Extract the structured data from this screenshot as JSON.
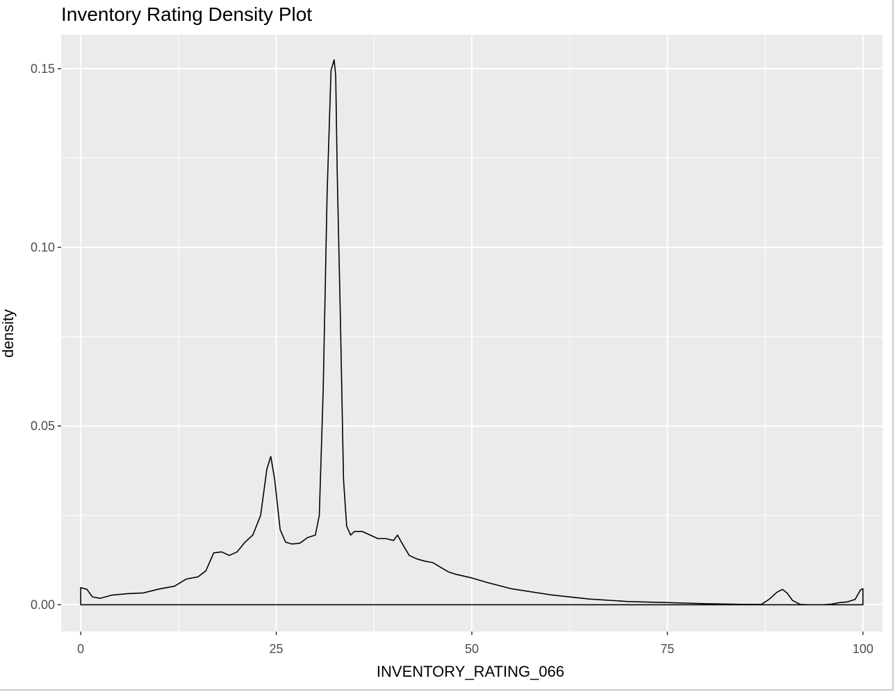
{
  "chart_data": {
    "type": "area",
    "title": "Inventory Rating Density Plot",
    "xlabel": "INVENTORY_RATING_066",
    "ylabel": "density",
    "xlim": [
      -2.5,
      102.5
    ],
    "ylim": [
      -0.0075,
      0.1595
    ],
    "x_ticks": [
      0,
      25,
      50,
      75,
      100
    ],
    "x_tick_labels": [
      "0",
      "25",
      "50",
      "75",
      "100"
    ],
    "y_ticks": [
      0.0,
      0.05,
      0.1,
      0.15
    ],
    "y_tick_labels": [
      "0.00",
      "0.05",
      "0.10",
      "0.15"
    ],
    "grid": true,
    "panel_color": "#ebebeb",
    "line_color": "#000000",
    "series": [
      {
        "x": [
          0,
          0.8,
          1.5,
          2.5,
          4,
          6,
          8,
          10,
          12,
          13.5,
          15,
          16,
          17,
          18,
          19,
          20,
          21,
          22,
          23,
          23.8,
          24.3,
          24.8,
          25.5,
          26.2,
          27,
          28,
          29,
          30,
          30.5,
          31,
          31.5,
          32,
          32.4,
          32.6,
          32.8,
          33.2,
          33.6,
          34,
          34.5,
          35,
          36,
          37,
          38,
          39,
          40,
          40.5,
          41,
          42,
          43,
          44,
          45,
          46,
          47,
          48,
          50,
          52,
          55,
          60,
          65,
          70,
          75,
          80,
          85,
          87,
          88,
          89,
          89.7,
          90.3,
          91,
          92,
          93,
          95,
          96,
          97,
          98,
          99,
          99.7,
          100
        ],
        "y": [
          0.0048,
          0.0043,
          0.0022,
          0.0018,
          0.0027,
          0.0031,
          0.0033,
          0.0044,
          0.0052,
          0.0072,
          0.0078,
          0.0095,
          0.0145,
          0.0148,
          0.0138,
          0.0148,
          0.0175,
          0.0195,
          0.025,
          0.038,
          0.0415,
          0.035,
          0.021,
          0.0175,
          0.017,
          0.0172,
          0.0188,
          0.0195,
          0.025,
          0.06,
          0.115,
          0.1495,
          0.1525,
          0.148,
          0.12,
          0.08,
          0.035,
          0.022,
          0.0195,
          0.0205,
          0.0205,
          0.0195,
          0.0185,
          0.0185,
          0.018,
          0.0195,
          0.0175,
          0.0138,
          0.0128,
          0.0122,
          0.0118,
          0.0105,
          0.0092,
          0.0085,
          0.0075,
          0.0062,
          0.0045,
          0.0028,
          0.0016,
          0.0009,
          0.0006,
          0.0003,
          0.0001,
          0.0001,
          0.0015,
          0.0035,
          0.0043,
          0.0033,
          0.0012,
          0.0001,
          0.0,
          0.0,
          0.0002,
          0.0006,
          0.0008,
          0.0015,
          0.0042,
          0.0045
        ]
      }
    ]
  }
}
